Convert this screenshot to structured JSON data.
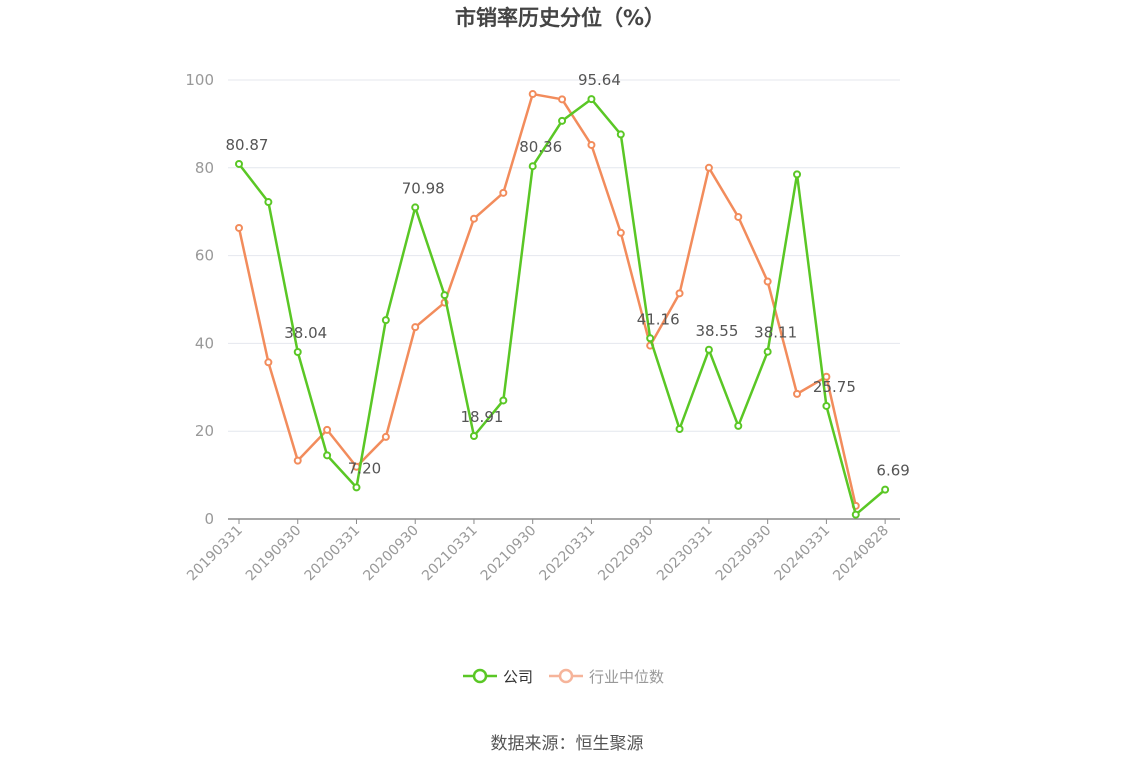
{
  "title": "市销率历史分位（%）",
  "source": "数据来源：恒生聚源",
  "colors": {
    "company": "#5ac725",
    "industry": "#f28c5c",
    "grid": "#e4e7ee",
    "axis": "#8a8a8a",
    "label": "#555555"
  },
  "legend": [
    {
      "name": "公司",
      "color": "#5ac725"
    },
    {
      "name": "行业中位数",
      "color": "#f6b49a"
    }
  ],
  "chart_data": {
    "type": "line",
    "title": "市销率历史分位（%）",
    "ylim": [
      0,
      100
    ],
    "yticks": [
      "0",
      "20",
      "40",
      "60",
      "80",
      "100"
    ],
    "grid": true,
    "legend_position": "bottom",
    "x": [
      "20190331",
      "20190630",
      "20190930",
      "20191231",
      "20200331",
      "20200630",
      "20200930",
      "20201231",
      "20210331",
      "20210630",
      "20210930",
      "20211231",
      "20220331",
      "20220630",
      "20220930",
      "20221231",
      "20230331",
      "20230630",
      "20230930",
      "20231231",
      "20240331",
      "20240630",
      "20240828"
    ],
    "x_tick_labels": [
      "20190331",
      "20190930",
      "20200331",
      "20200930",
      "20210331",
      "20210930",
      "20220331",
      "20220930",
      "20230331",
      "20230930",
      "20240331",
      "20240828"
    ],
    "series": [
      {
        "name": "公司",
        "values": [
          80.87,
          72.2,
          38.04,
          14.5,
          7.2,
          45.3,
          70.98,
          51.0,
          18.91,
          27.0,
          80.36,
          90.7,
          95.64,
          87.6,
          41.16,
          20.5,
          38.55,
          21.2,
          38.11,
          78.5,
          25.75,
          1.0,
          6.69
        ],
        "data_labels": [
          "80.87",
          "",
          "38.04",
          "",
          "7.20",
          "",
          "70.98",
          "",
          "18.91",
          "",
          "80.36",
          "",
          "95.64",
          "",
          "41.16",
          "",
          "38.55",
          "",
          "38.11",
          "",
          "25.75",
          "",
          "6.69"
        ]
      },
      {
        "name": "行业中位数",
        "values": [
          66.3,
          35.7,
          13.3,
          20.3,
          11.9,
          18.7,
          43.7,
          49.3,
          68.4,
          74.3,
          96.8,
          95.6,
          85.2,
          65.2,
          39.5,
          51.4,
          80.0,
          68.8,
          54.1,
          28.5,
          32.4,
          3.0,
          null
        ]
      }
    ]
  }
}
